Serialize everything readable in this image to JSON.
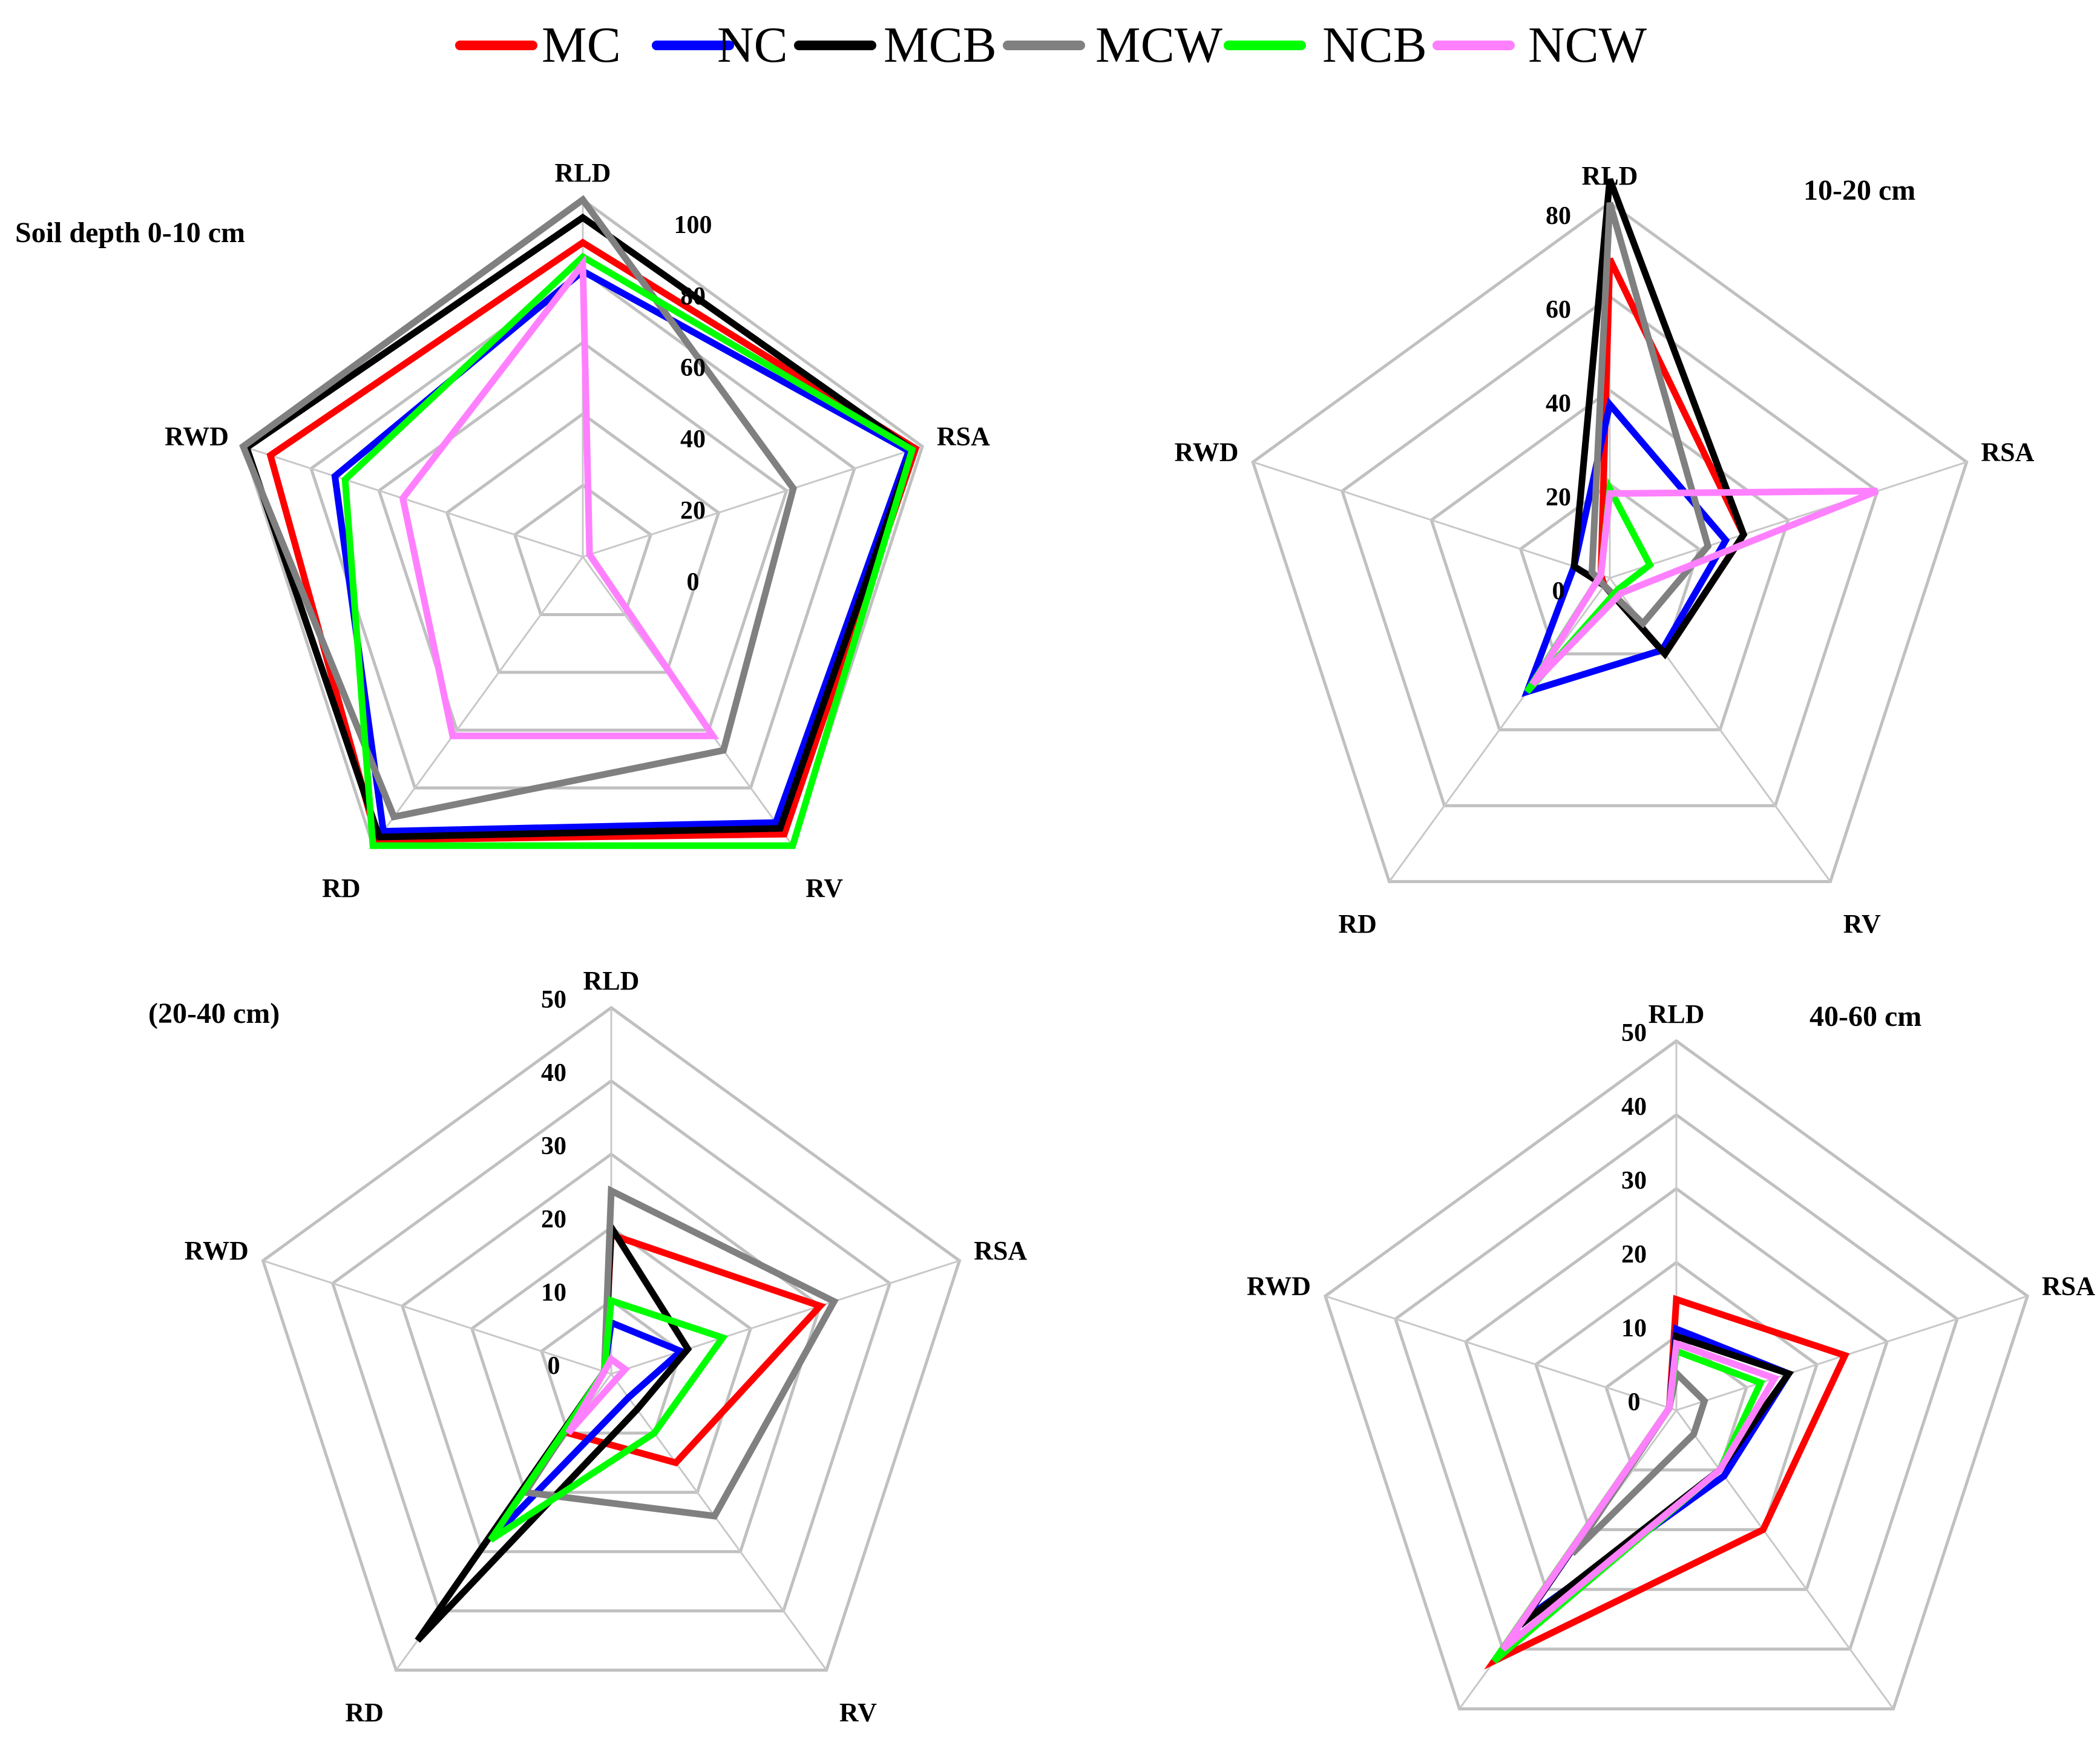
{
  "legend": [
    {
      "name": "MC",
      "color": "#ff0000"
    },
    {
      "name": "NC",
      "color": "#0000ff"
    },
    {
      "name": "MCB",
      "color": "#000000"
    },
    {
      "name": "MCW",
      "color": "#808080"
    },
    {
      "name": "NCB",
      "color": "#00ff00"
    },
    {
      "name": "NCW",
      "color": "#ff80ff"
    }
  ],
  "chart_data": [
    {
      "type": "radar",
      "title": "Soil depth 0-10 cm",
      "axes": [
        "RLD",
        "RSA",
        "RV",
        "RD",
        "RWD"
      ],
      "ticks": [
        "0",
        "20",
        "40",
        "60",
        "80",
        "100"
      ],
      "range": [
        0,
        100
      ],
      "series": [
        {
          "name": "MC",
          "values": [
            88,
            98,
            96,
            98,
            92
          ]
        },
        {
          "name": "NC",
          "values": [
            80,
            96,
            92,
            95,
            73
          ]
        },
        {
          "name": "MCB",
          "values": [
            95,
            97,
            94,
            97,
            99
          ]
        },
        {
          "name": "MCW",
          "values": [
            100,
            62,
            67,
            90,
            100
          ]
        },
        {
          "name": "NCB",
          "values": [
            84,
            97,
            100,
            100,
            70
          ]
        },
        {
          "name": "NCW",
          "values": [
            82,
            2,
            62,
            62,
            53
          ]
        }
      ]
    },
    {
      "type": "radar",
      "title": "10-20 cm",
      "axes": [
        "RLD",
        "RSA",
        "RV",
        "RD",
        "RWD"
      ],
      "ticks": [
        "0",
        "20",
        "40",
        "60",
        "80"
      ],
      "range": [
        0,
        80
      ],
      "series": [
        {
          "name": "MC",
          "values": [
            68,
            30,
            20,
            2,
            2
          ]
        },
        {
          "name": "NC",
          "values": [
            37,
            26,
            19,
            30,
            8
          ]
        },
        {
          "name": "MCB",
          "values": [
            85,
            30,
            20,
            2,
            8
          ]
        },
        {
          "name": "MCW",
          "values": [
            80,
            22,
            12,
            2,
            4
          ]
        },
        {
          "name": "NCB",
          "values": [
            19,
            9,
            3,
            30,
            2
          ]
        },
        {
          "name": "NCW",
          "values": [
            18,
            60,
            4,
            28,
            2
          ]
        }
      ]
    },
    {
      "type": "radar",
      "title": "(20-40 cm)",
      "axes": [
        "RLD",
        "RSA",
        "RV",
        "RD",
        "RWD"
      ],
      "ticks": [
        "0",
        "10",
        "20",
        "30",
        "40",
        "50"
      ],
      "range": [
        0,
        50
      ],
      "series": [
        {
          "name": "MC",
          "values": [
            19,
            30,
            15,
            10,
            1
          ]
        },
        {
          "name": "NC",
          "values": [
            7,
            10,
            4,
            28,
            1
          ]
        },
        {
          "name": "MCB",
          "values": [
            20,
            11,
            6,
            45,
            1
          ]
        },
        {
          "name": "MCW",
          "values": [
            25,
            32,
            24,
            20,
            1
          ]
        },
        {
          "name": "NCB",
          "values": [
            10,
            16,
            10,
            28,
            1
          ]
        },
        {
          "name": "NCW",
          "values": [
            2,
            2,
            1,
            10,
            1
          ]
        }
      ]
    },
    {
      "type": "radar",
      "title": "40-60 cm",
      "axes": [
        "RLD",
        "RSA",
        "RV",
        "RD",
        "RWD"
      ],
      "ticks": [
        "0",
        "10",
        "20",
        "30",
        "40",
        "50"
      ],
      "range": [
        0,
        50
      ],
      "series": [
        {
          "name": "MC",
          "values": [
            15,
            24,
            20,
            42,
            1
          ]
        },
        {
          "name": "NC",
          "values": [
            11,
            16,
            11,
            35,
            1
          ]
        },
        {
          "name": "MCB",
          "values": [
            10,
            16,
            10,
            36,
            1
          ]
        },
        {
          "name": "MCW",
          "values": [
            5,
            4,
            4,
            24,
            1
          ]
        },
        {
          "name": "NCB",
          "values": [
            8,
            12,
            10,
            42,
            1
          ]
        },
        {
          "name": "NCW",
          "values": [
            9,
            14,
            10,
            40,
            1
          ]
        }
      ]
    }
  ]
}
